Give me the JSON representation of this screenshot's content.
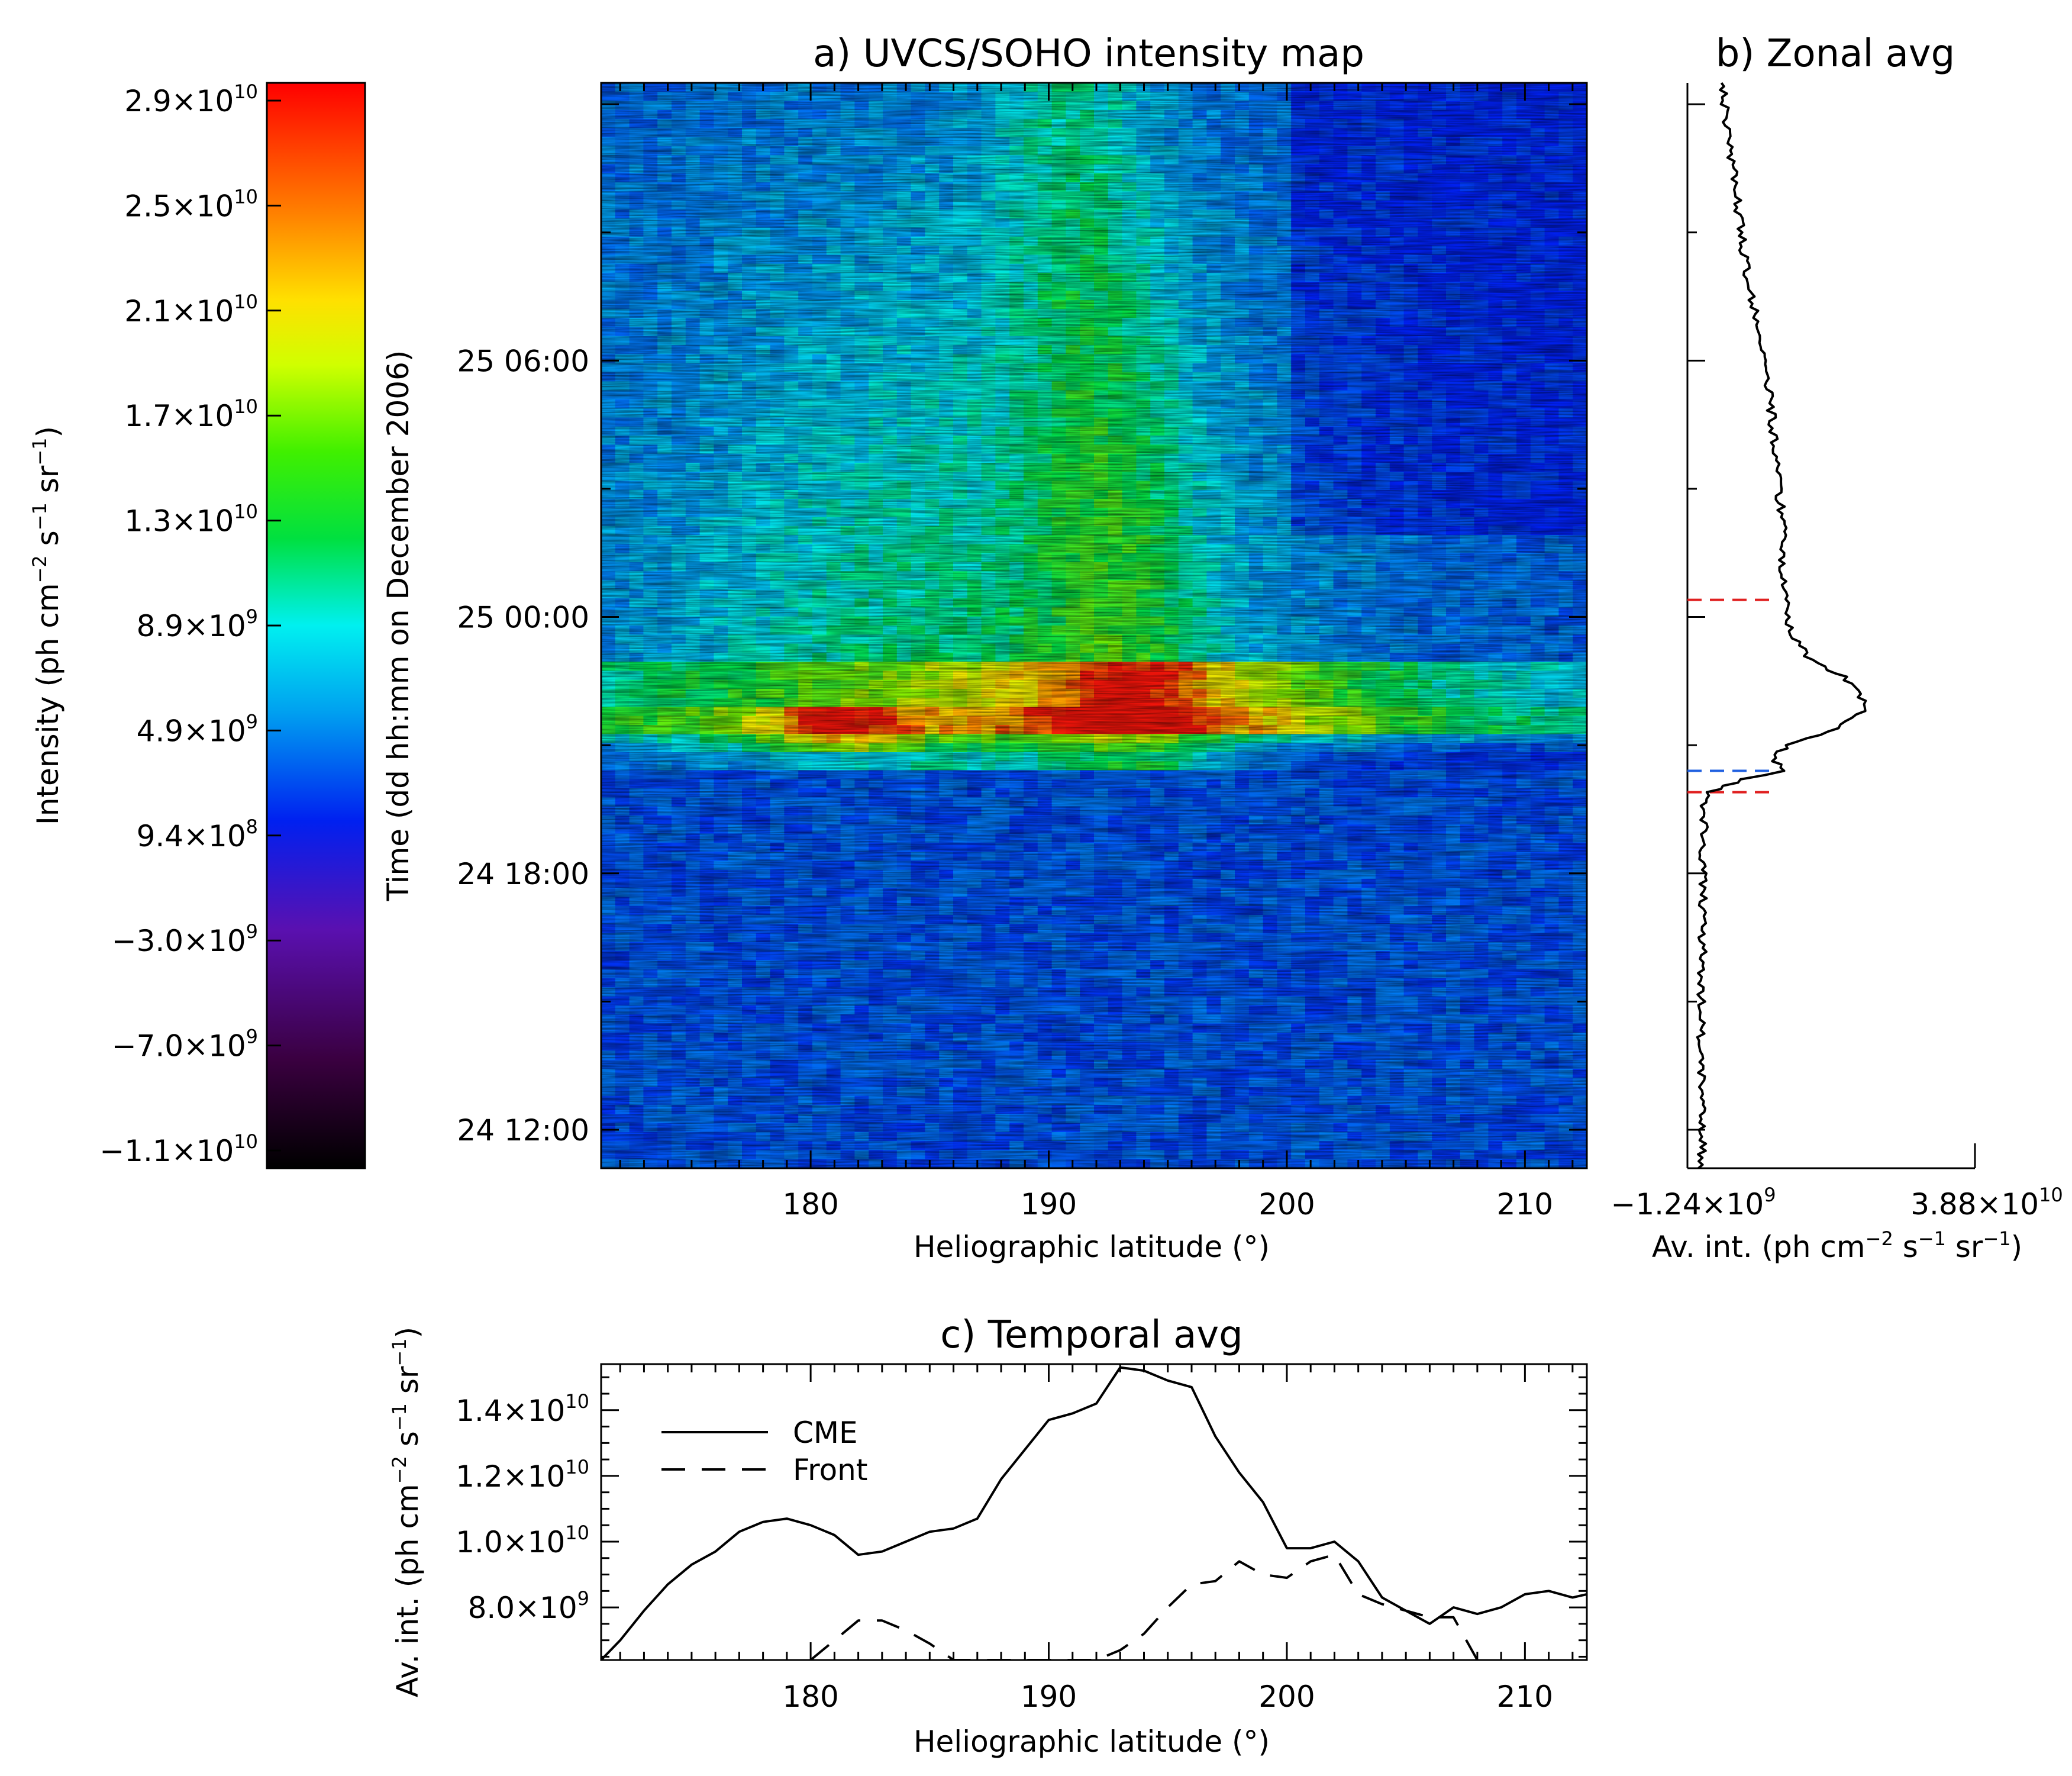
{
  "chart_data": [
    {
      "id": "panel-a",
      "type": "heatmap",
      "title": "a) UVCS/SOHO intensity map",
      "xlabel": "Heliographic latitude (°)",
      "ylabel": "Time (dd hh:mm on December 2006)",
      "xlim": [
        171.2,
        212.6
      ],
      "x_ticks": [
        180,
        190,
        200,
        210
      ],
      "x_tick_labels": [
        "180",
        "190",
        "200",
        "210"
      ],
      "y_ticks_hours": [
        0,
        6,
        12,
        18
      ],
      "y_tick_labels": [
        "24 12:00",
        "24 18:00",
        "25 00:00",
        "25 06:00"
      ],
      "colorbar": {
        "label": "Intensity (ph cm",
        "label_parts": [
          "Intensity (ph cm",
          "−2",
          " s",
          "−1",
          " sr",
          "−1",
          ")"
        ],
        "tick_labels": [
          {
            "m": "2.9×10",
            "e": "10"
          },
          {
            "m": "2.5×10",
            "e": "10"
          },
          {
            "m": "2.1×10",
            "e": "10"
          },
          {
            "m": "1.7×10",
            "e": "10"
          },
          {
            "m": "1.3×10",
            "e": "10"
          },
          {
            "m": "8.9×10",
            "e": "9"
          },
          {
            "m": "4.9×10",
            "e": "9"
          },
          {
            "m": "9.4×10",
            "e": "8"
          },
          {
            "m": "−3.0×10",
            "e": "9"
          },
          {
            "m": "−7.0×10",
            "e": "9"
          },
          {
            "m": "−1.1×10",
            "e": "10"
          }
        ]
      },
      "features": {
        "cme_front_hour": 8.4,
        "bright_band_hours": [
          9.2,
          11.0
        ],
        "streamer_center_lat": 193.5
      }
    },
    {
      "id": "panel-b",
      "type": "line",
      "title": "b) Zonal avg",
      "xlabel_parts": [
        "Av. int. (ph cm",
        "−2",
        " s",
        "−1",
        " sr",
        "−1",
        ")"
      ],
      "xlim": [
        -1240000000.0,
        38800000000.0
      ],
      "x_tick_labels": [
        {
          "m": "−1.24×10",
          "e": "9"
        },
        {
          "m": "3.88×10",
          "e": "10"
        }
      ],
      "markers_hours": [
        {
          "hour": 7.9,
          "color": "#e02020"
        },
        {
          "hour": 8.4,
          "color": "#2060e0"
        },
        {
          "hour": 12.4,
          "color": "#e02020"
        }
      ],
      "profile": {
        "hours": [
          -0.9,
          0,
          2,
          4,
          6,
          7.5,
          7.9,
          8.2,
          8.4,
          8.7,
          9.0,
          9.4,
          9.8,
          10.2,
          10.6,
          11.0,
          11.5,
          12,
          13,
          14,
          16,
          18,
          20,
          22,
          24.5
        ],
        "values": [
          700000000.0,
          800000000.0,
          700000000.0,
          800000000.0,
          900000000.0,
          1000000000.0,
          2000000000.0,
          6500000000.0,
          12000000000.0,
          10500000000.0,
          13000000000.0,
          20000000000.0,
          23000000000.0,
          23000000000.0,
          20500000000.0,
          16000000000.0,
          13500000000.0,
          12500000000.0,
          12000000000.0,
          12000000000.0,
          11000000000.0,
          9500000000.0,
          7000000000.0,
          5500000000.0,
          3500000000.0
        ]
      },
      "line_color": "#000000"
    },
    {
      "id": "panel-c",
      "type": "line",
      "title": "c) Temporal avg",
      "xlabel": "Heliographic latitude (°)",
      "ylabel_parts": [
        "Av. int. (ph cm",
        "−2",
        " s",
        "−1",
        " sr",
        "−1",
        ")"
      ],
      "xlim": [
        171.2,
        212.6
      ],
      "ylim": [
        6400000000.0,
        15400000000.0
      ],
      "x_tick_labels": [
        "180",
        "190",
        "200",
        "210"
      ],
      "y_tick_labels": [
        {
          "v": 8000000000.0,
          "m": "8.0×10",
          "e": "9"
        },
        {
          "v": 10000000000.0,
          "m": "1.0×10",
          "e": "10"
        },
        {
          "v": 12000000000.0,
          "m": "1.2×10",
          "e": "10"
        },
        {
          "v": 14000000000.0,
          "m": "1.4×10",
          "e": "10"
        }
      ],
      "legend": "top-left",
      "series": [
        {
          "name": "CME",
          "style": "solid",
          "x": [
            171.2,
            172,
            173,
            174,
            175,
            176,
            177,
            178,
            179,
            180,
            181,
            182,
            183,
            184,
            185,
            186,
            187,
            188,
            189,
            190,
            191,
            192,
            193,
            194,
            195,
            196,
            197,
            198,
            199,
            200,
            201,
            202,
            203,
            204,
            205,
            206,
            207,
            208,
            209,
            210,
            211,
            212,
            212.6
          ],
          "y": [
            6400000000.0,
            7000000000.0,
            7900000000.0,
            8700000000.0,
            9300000000.0,
            9700000000.0,
            10300000000.0,
            10600000000.0,
            10700000000.0,
            10500000000.0,
            10200000000.0,
            9600000000.0,
            9700000000.0,
            10000000000.0,
            10300000000.0,
            10400000000.0,
            10700000000.0,
            11900000000.0,
            12800000000.0,
            13700000000.0,
            13900000000.0,
            14200000000.0,
            15300000000.0,
            15200000000.0,
            14900000000.0,
            14700000000.0,
            13200000000.0,
            12100000000.0,
            11200000000.0,
            9800000000.0,
            9800000000.0,
            10000000000.0,
            9400000000.0,
            8300000000.0,
            7900000000.0,
            7500000000.0,
            8000000000.0,
            7800000000.0,
            8000000000.0,
            8400000000.0,
            8500000000.0,
            8300000000.0,
            8400000000.0
          ]
        },
        {
          "name": "Front",
          "style": "dashed",
          "x": [
            180,
            181,
            182,
            183,
            184,
            185,
            186,
            192,
            193,
            194,
            195,
            196,
            197,
            198,
            199,
            200,
            201,
            202,
            203,
            204,
            205,
            206,
            207,
            208
          ],
          "y": [
            6400000000.0,
            7000000000.0,
            7600000000.0,
            7600000000.0,
            7300000000.0,
            6900000000.0,
            6400000000.0,
            6400000000.0,
            6700000000.0,
            7200000000.0,
            8000000000.0,
            8700000000.0,
            8800000000.0,
            9400000000.0,
            9000000000.0,
            8900000000.0,
            9400000000.0,
            9600000000.0,
            8400000000.0,
            8100000000.0,
            7900000000.0,
            7700000000.0,
            7700000000.0,
            6400000000.0
          ]
        }
      ]
    }
  ]
}
